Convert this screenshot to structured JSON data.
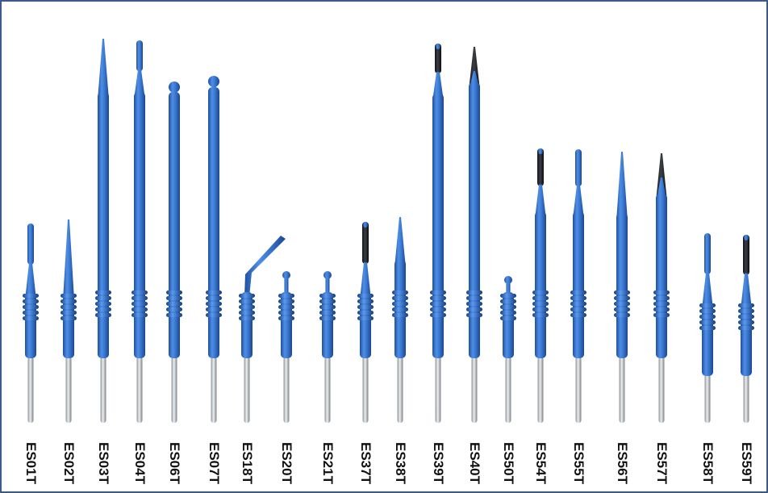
{
  "photo": {
    "border_color": "#3a5a8c",
    "handle_color": "#3a78d0",
    "coating_color": "#23262b",
    "shaft_color": "#c9ccd1",
    "electrodes": [
      {
        "code": "ES01T",
        "tip": "blade"
      },
      {
        "code": "ES02T",
        "tip": "needle"
      },
      {
        "code": "ES03T",
        "tip": "needle"
      },
      {
        "code": "ES04T",
        "tip": "blade"
      },
      {
        "code": "ES06T",
        "tip": "ball"
      },
      {
        "code": "ES07T",
        "tip": "ball"
      },
      {
        "code": "ES18T",
        "tip": "angled-blade"
      },
      {
        "code": "ES20T",
        "tip": "ball"
      },
      {
        "code": "ES21T",
        "tip": "ball"
      },
      {
        "code": "ES37T",
        "tip": "coated-blade"
      },
      {
        "code": "ES38T",
        "tip": "needle"
      },
      {
        "code": "ES39T",
        "tip": "coated-blade"
      },
      {
        "code": "ES40T",
        "tip": "coated-needle"
      },
      {
        "code": "ES50T",
        "tip": "ball"
      },
      {
        "code": "ES54T",
        "tip": "coated-blade"
      },
      {
        "code": "ES55T",
        "tip": "blade"
      },
      {
        "code": "ES56T",
        "tip": "needle"
      },
      {
        "code": "ES57T",
        "tip": "coated-needle"
      },
      {
        "code": "ES58T",
        "tip": "blade"
      },
      {
        "code": "ES59T",
        "tip": "coated-blade"
      }
    ]
  }
}
